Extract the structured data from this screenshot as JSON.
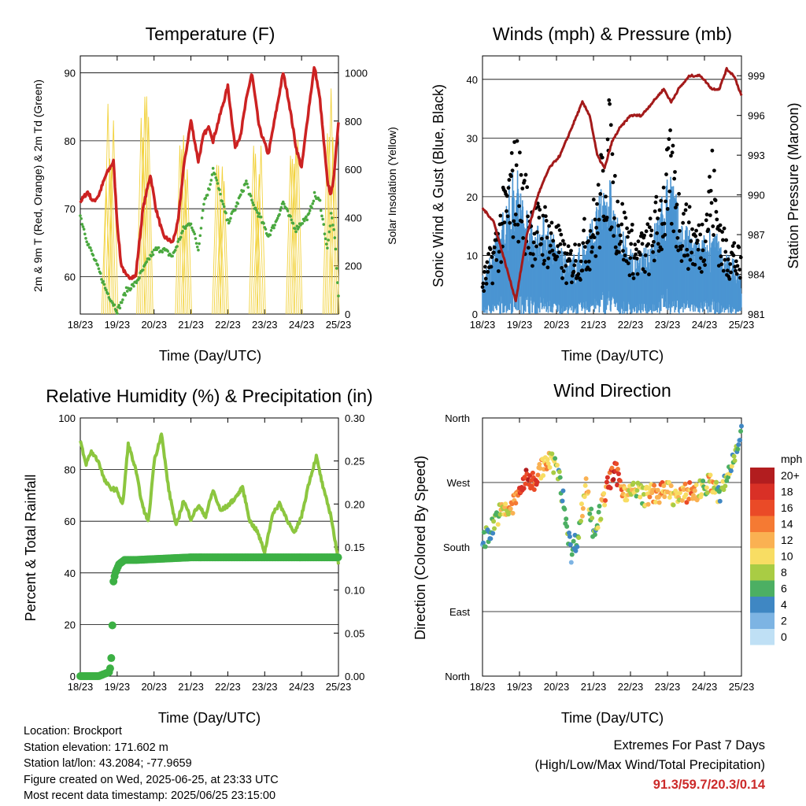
{
  "xticks": [
    "18/23",
    "19/23",
    "20/23",
    "21/23",
    "22/23",
    "23/23",
    "24/23",
    "25/23"
  ],
  "xlabel": "Time (Day/UTC)",
  "chart_data": [
    {
      "type": "line",
      "title": "Temperature (F)",
      "ylabel_left": "2m & 9m T (Red, Orange) & 2m Td (Green)",
      "ylabel_right": "Solar Insolation (Yellow)",
      "ylim_left": [
        54.5,
        92.5
      ],
      "yticks_left": [
        60,
        70,
        80,
        90
      ],
      "ylim_right": [
        0,
        1070
      ],
      "yticks_right": [
        0,
        200,
        400,
        600,
        800,
        1000
      ],
      "x_days": [
        0,
        0.2,
        0.35,
        0.5,
        0.7,
        0.9,
        1.0,
        1.1,
        1.25,
        1.5,
        1.7,
        1.9,
        2.05,
        2.25,
        2.5,
        2.65,
        2.8,
        3.0,
        3.2,
        3.35,
        3.5,
        3.6,
        3.8,
        4.0,
        4.2,
        4.35,
        4.5,
        4.65,
        4.85,
        5.1,
        5.3,
        5.5,
        5.65,
        5.85,
        6.0,
        6.2,
        6.35,
        6.5,
        6.7,
        6.8,
        6.9,
        7.0
      ],
      "series": [
        {
          "color": "#cc2222",
          "values": [
            71,
            72.5,
            71,
            72,
            75,
            77,
            68,
            62,
            60,
            60,
            70,
            75,
            70,
            66,
            65,
            68,
            76,
            83,
            77,
            81,
            82,
            80,
            84,
            88,
            79,
            81,
            86,
            90,
            82,
            78,
            84,
            90,
            86,
            79,
            76,
            85,
            91,
            86,
            74,
            72,
            76,
            83
          ]
        },
        {
          "color": "#4aa83f",
          "values": [
            69,
            65,
            63,
            61,
            58,
            56,
            55,
            56,
            58,
            59,
            61,
            63,
            64,
            64,
            63,
            65,
            67,
            68,
            64,
            71,
            73,
            76,
            72,
            68,
            70,
            72,
            74,
            71,
            69,
            66,
            68,
            71,
            69,
            67,
            68,
            69,
            72,
            71,
            64,
            69,
            66,
            57
          ]
        },
        {
          "color": "#f2d23c",
          "peaks_x": [
            0.8,
            1.75,
            2.8,
            3.8,
            4.8,
            5.8,
            6.8
          ],
          "peaks_w": [
            900,
            1000,
            800,
            700,
            720,
            750,
            1000
          ]
        }
      ]
    },
    {
      "type": "scatter",
      "title": "Winds (mph) & Pressure (mb)",
      "ylabel_left": "Sonic Wind & Gust (Blue, Black)",
      "ylabel_right": "Station Pressure (Maroon)",
      "ylim_left": [
        0,
        44
      ],
      "yticks_left": [
        0,
        10,
        20,
        30,
        40
      ],
      "ylim_right": [
        981,
        1000.5
      ],
      "yticks_right": [
        981,
        984,
        987,
        990,
        993,
        996,
        999
      ],
      "wind_x": [
        0,
        0.3,
        0.6,
        0.9,
        1.1,
        1.4,
        1.7,
        2.0,
        2.3,
        2.6,
        2.8,
        3.1,
        3.4,
        3.6,
        3.9,
        4.2,
        4.5,
        4.8,
        5.1,
        5.3,
        5.6,
        5.9,
        6.2,
        6.5,
        6.8,
        7.0
      ],
      "wind_values": [
        4,
        8,
        12,
        17,
        13,
        10,
        11,
        8,
        6,
        7,
        9,
        12,
        16,
        11,
        8,
        6,
        8,
        12,
        17,
        11,
        9,
        8,
        10,
        7,
        6,
        4
      ],
      "gust_values": [
        6,
        12,
        20,
        28,
        23,
        17,
        17,
        14,
        10,
        12,
        15,
        19,
        34,
        22,
        15,
        12,
        14,
        20,
        28,
        20,
        16,
        14,
        26,
        13,
        12,
        9
      ],
      "pressure_x": [
        0,
        0.3,
        0.6,
        0.9,
        1.2,
        1.5,
        1.8,
        2.1,
        2.4,
        2.7,
        2.9,
        3.1,
        3.3,
        3.5,
        3.7,
        4.0,
        4.3,
        4.6,
        4.9,
        5.1,
        5.3,
        5.6,
        5.9,
        6.2,
        6.4,
        6.6,
        6.8,
        7.0
      ],
      "pressure_values": [
        989,
        988,
        985,
        982,
        987,
        990,
        992,
        993,
        995,
        997,
        996,
        993,
        992,
        994,
        995,
        996,
        996,
        997,
        998,
        997,
        998,
        999,
        999,
        998,
        998,
        999.5,
        999,
        997.5
      ]
    },
    {
      "type": "line",
      "title": "Relative Humidity (%) & Precipitation (in)",
      "ylabel_left": "Percent & Total Rainfall",
      "ylim_left": [
        0,
        100
      ],
      "yticks_left": [
        0,
        20,
        40,
        60,
        80,
        100
      ],
      "ylim_right": [
        0,
        0.3
      ],
      "yticks_right": [
        "0.00",
        "0.05",
        "0.10",
        "0.15",
        "0.20",
        "0.25",
        "0.30"
      ],
      "x_days": [
        0,
        0.15,
        0.3,
        0.5,
        0.65,
        0.8,
        1.0,
        1.15,
        1.3,
        1.5,
        1.7,
        1.85,
        2.0,
        2.2,
        2.4,
        2.6,
        2.8,
        3.0,
        3.2,
        3.4,
        3.6,
        3.8,
        4.0,
        4.2,
        4.4,
        4.6,
        4.8,
        5.0,
        5.2,
        5.4,
        5.6,
        5.8,
        6.0,
        6.2,
        6.4,
        6.6,
        6.8,
        7.0
      ],
      "series": [
        {
          "name": "RH",
          "color": "#8cc63f",
          "values": [
            91,
            82,
            87,
            83,
            76,
            73,
            72,
            66,
            90,
            80,
            65,
            60,
            83,
            94,
            72,
            58,
            68,
            61,
            66,
            62,
            72,
            64,
            66,
            69,
            73,
            60,
            56,
            48,
            62,
            67,
            61,
            55,
            62,
            75,
            85,
            72,
            62,
            44
          ]
        },
        {
          "name": "Precip",
          "color": "#3cb044",
          "x_days": [
            0,
            0.5,
            0.8,
            0.85,
            0.9,
            0.95,
            1.05,
            1.2,
            1.5,
            2.5,
            3.0,
            3.5,
            4.5,
            5.5,
            6.5,
            7.0
          ],
          "values": [
            0,
            0,
            0.005,
            0.025,
            0.11,
            0.12,
            0.13,
            0.135,
            0.135,
            0.137,
            0.138,
            0.138,
            0.138,
            0.138,
            0.138,
            0.138
          ]
        }
      ]
    },
    {
      "type": "scatter",
      "title": "Wind Direction",
      "ylabel_left": "Direction (Colored By Speed)",
      "yticks_left": [
        "North",
        "East",
        "South",
        "West",
        "North"
      ],
      "ylim_left": [
        0,
        360
      ],
      "x_days": [
        0,
        0.2,
        0.4,
        0.6,
        0.8,
        1.0,
        1.2,
        1.4,
        1.6,
        1.8,
        2.0,
        2.2,
        2.4,
        2.6,
        2.8,
        3.0,
        3.2,
        3.4,
        3.6,
        3.8,
        4.0,
        4.2,
        4.4,
        4.6,
        4.8,
        5.0,
        5.2,
        5.4,
        5.6,
        5.8,
        6.0,
        6.2,
        6.4,
        6.6,
        6.8,
        7.0
      ],
      "directions": [
        190,
        200,
        225,
        230,
        235,
        260,
        275,
        272,
        290,
        300,
        295,
        240,
        170,
        200,
        270,
        200,
        230,
        270,
        285,
        260,
        255,
        260,
        250,
        255,
        255,
        260,
        250,
        250,
        260,
        255,
        265,
        270,
        250,
        275,
        305,
        350
      ],
      "speeds": [
        4,
        6,
        8,
        10,
        12,
        16,
        18,
        18,
        12,
        10,
        8,
        6,
        4,
        6,
        12,
        6,
        10,
        16,
        18,
        12,
        10,
        8,
        9,
        12,
        14,
        10,
        9,
        12,
        14,
        10,
        8,
        12,
        6,
        8,
        6,
        4
      ],
      "legend_title": "mph",
      "legend_labels": [
        "20+",
        "18",
        "16",
        "14",
        "12",
        "10",
        "8",
        "6",
        "4",
        "2",
        "0"
      ],
      "legend_colors": [
        "#b21d1f",
        "#d93026",
        "#ea4a27",
        "#f57a33",
        "#fab152",
        "#f8dd63",
        "#a9cc44",
        "#4caf63",
        "#3f87c3",
        "#7db4e3",
        "#bfe0f5"
      ]
    }
  ],
  "info": {
    "location": "Location: Brockport",
    "elevation": "Station elevation: 171.602 m",
    "latlon": "Station lat/lon: 43.2084; -77.9659",
    "created": "Figure created on Wed, 2025-06-25, at 23:33 UTC",
    "recent": "Most recent data timestamp: 2025/06/25 23:15:00"
  },
  "extremes": {
    "title": "Extremes For Past 7 Days",
    "subtitle": "(High/Low/Max Wind/Total Precipitation)",
    "values": "91.3/59.7/20.3/0.14"
  }
}
